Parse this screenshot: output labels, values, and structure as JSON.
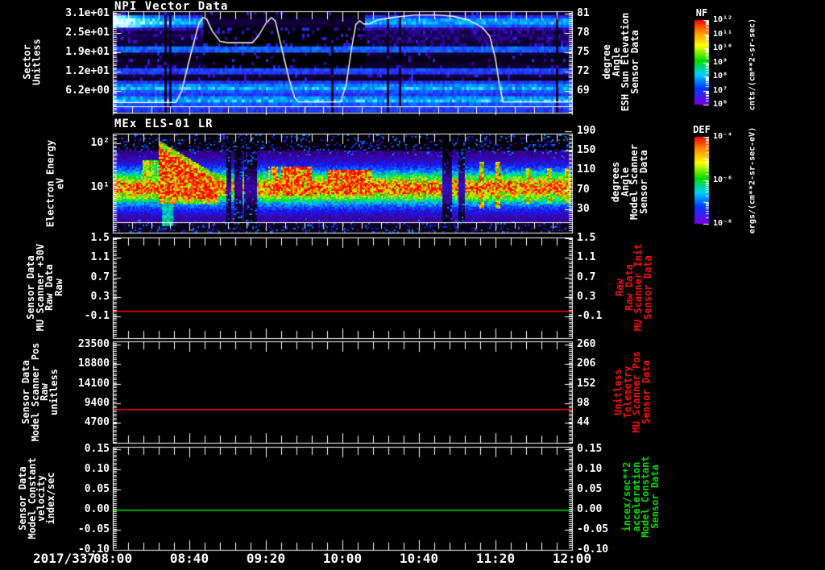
{
  "app": {
    "type": "science-data-plot-stack",
    "background": "#000000"
  },
  "time_axis": {
    "date": "2017/337",
    "tick_labels": [
      "08:00",
      "08:40",
      "09:20",
      "10:00",
      "10:40",
      "11:20",
      "12:00"
    ],
    "start": "08:00",
    "end": "12:00"
  },
  "colors": {
    "background": "#000000",
    "frame": "#ffffff",
    "text_white": "#ffffff",
    "text_red": "#ee1111",
    "text_green": "#00dd00",
    "line_red": "#ff0000",
    "line_green": "#00dd00",
    "overlay_line": "#ffffff"
  },
  "panels": [
    {
      "title": "NPI Vector Data",
      "left_axis": {
        "label_lines": [
          "Sector",
          "Unitless"
        ],
        "tick_labels": [
          "3.1e+01",
          "2.5e+01",
          "1.9e+01",
          "1.2e+01",
          "6.2e+00"
        ]
      },
      "right_axis": {
        "label_lines": [
          "Sensor Data",
          "ESH Sun Elevation",
          "Angle",
          "degree"
        ],
        "tick_labels": [
          "81",
          "78",
          "75",
          "72",
          "69"
        ],
        "color": "#ffffff"
      }
    },
    {
      "title": "MEx ELS-01 LR",
      "left_axis": {
        "label_lines": [
          "Electron Energy",
          "eV"
        ],
        "tick_labels": [
          "10²",
          "10¹"
        ]
      },
      "right_axis": {
        "label_lines": [
          "Sensor Data",
          "Model Scanner",
          "Angle",
          "degrees"
        ],
        "tick_labels": [
          "190",
          "150",
          "110",
          "70",
          "30"
        ],
        "color": "#ffffff"
      }
    },
    {
      "title": "",
      "left_axis": {
        "label_lines": [
          "Sensor Data",
          "MU Scanner +30V",
          "Raw Data",
          "Raw"
        ],
        "tick_labels": [
          "1.5",
          "1.1",
          "0.7",
          "0.3",
          "-0.1"
        ]
      },
      "right_axis": {
        "label_lines": [
          "Sensor Data",
          "MU Scanner Init",
          "Raw Data",
          "Raw"
        ],
        "tick_labels": [
          "1.5",
          "1.1",
          "0.7",
          "0.3",
          "-0.1"
        ],
        "color": "#ee1111"
      }
    },
    {
      "title": "",
      "left_axis": {
        "label_lines": [
          "Sensor Data",
          "Model Scanner Pos",
          "Raw",
          "unitless"
        ],
        "tick_labels": [
          "23500",
          "18800",
          "14100",
          "9400",
          "4700"
        ]
      },
      "right_axis": {
        "label_lines": [
          "Sensor Data",
          "MU Scanner Pos",
          "Telemetry",
          "Unitless"
        ],
        "tick_labels": [
          "260",
          "206",
          "152",
          "98",
          "44"
        ],
        "color": "#ee1111"
      }
    },
    {
      "title": "",
      "left_axis": {
        "label_lines": [
          "Sensor Data",
          "Model Constant",
          "velocity",
          "index/sec"
        ],
        "tick_labels": [
          "0.15",
          "0.10",
          "0.05",
          "0.00",
          "-0.05",
          "-0.10"
        ]
      },
      "right_axis": {
        "label_lines": [
          "Sensor Data",
          "Model Constant",
          "acceleration",
          "incex/sec**2"
        ],
        "tick_labels": [
          "0.15",
          "0.10",
          "0.05",
          "0.00",
          "-0.05",
          "-0.10"
        ],
        "color": "#00dd00"
      }
    }
  ],
  "colorbars": [
    {
      "title": "NF",
      "tick_labels": [
        "10¹²",
        "10¹¹",
        "10¹⁰",
        "10⁹",
        "10⁸",
        "10⁷",
        "10⁶"
      ],
      "unit": "cnts/(cm**2-sr-sec)"
    },
    {
      "title": "DEF",
      "tick_labels": [
        "10⁻⁴",
        "10⁻⁶",
        "10⁻⁸"
      ],
      "unit": "ergs/(cm**2-sr-sec-eV)"
    }
  ],
  "chart_data": [
    {
      "type": "heatmap",
      "title": "NPI Vector Data",
      "ylabel": "Sector (Unitless)",
      "y_tick_values": [
        31,
        25,
        19,
        12,
        6.2
      ],
      "x_range": [
        "08:00",
        "12:00"
      ],
      "z_label": "NF cnts/(cm**2-sr-sec)",
      "z_range_log10": [
        6,
        12
      ],
      "pattern": "horizontal sector bands of blue/cyan counts separated by black gaps; bright cyan patch 08:00-08:25 in upper sectors; dark region ~08:45-10:10 in upper sectors; scattered purple speckle pixels throughout",
      "overlay_line": {
        "name": "ESH Sun Elevation Angle",
        "unit": "degree",
        "axis_range": [
          69,
          81
        ],
        "x_minutes_after_0800": [
          0,
          33,
          36,
          41,
          45,
          47,
          49,
          52,
          56,
          60,
          73,
          76,
          80,
          83,
          85,
          88,
          92,
          95,
          97,
          119,
          122,
          125,
          127,
          129,
          131,
          134,
          138,
          146,
          158,
          170,
          178,
          186,
          193,
          197,
          200,
          202,
          204,
          240
        ],
        "values": [
          67.2,
          67.2,
          69,
          75,
          79.5,
          80.4,
          80.2,
          78.3,
          76.7,
          76.5,
          76.5,
          77.5,
          79.5,
          80.4,
          79.8,
          76,
          71,
          68,
          67.3,
          67.3,
          70,
          76,
          79.3,
          79.9,
          79.4,
          79.4,
          80,
          80.4,
          80.8,
          80.8,
          80.6,
          80,
          78.9,
          77.5,
          74,
          70,
          67.3,
          67.3
        ]
      }
    },
    {
      "type": "heatmap",
      "title": "MEx ELS-01 LR",
      "ylabel": "Electron Energy (eV)",
      "y_scale": "log",
      "y_tick_values": [
        100,
        10
      ],
      "x_range": [
        "08:00",
        "12:00"
      ],
      "z_label": "DEF ergs/(cm**2-sr-sec-eV)",
      "z_range_log10": [
        -8,
        -4
      ],
      "right_axis": {
        "label": "Model Scanner Angle (degrees)",
        "tick_values": [
          190,
          150,
          110,
          70,
          30
        ]
      },
      "pattern": "continuous green 5-30 eV band across all times; intense red burst ~08:25-08:55 reaching ~150 eV; red patches ~09:20-09:45 and ~09:55-10:15; vertical data gap ~09:00-09:15; narrow warm vertical streaks after 11:10"
    },
    {
      "type": "line",
      "name": "Sensor Data MU Scanner +30V Raw Data (Raw)",
      "constant_value": 0.02,
      "ylim": [
        -0.1,
        1.5
      ],
      "color": "#ff0000"
    },
    {
      "type": "line",
      "name": "Sensor Data Model Scanner Pos Raw (unitless)",
      "constant_value": 8050,
      "ylim": [
        4700,
        23500
      ],
      "right_axis": {
        "name": "MU Scanner Pos Telemetry (Unitless)",
        "value": 83,
        "ylim": [
          44,
          260
        ]
      },
      "color": "#ff0000"
    },
    {
      "type": "line",
      "name": "Sensor Data Model Constant velocity (index/sec)",
      "constant_value": 0.0,
      "ylim": [
        -0.1,
        0.15
      ],
      "right_axis": {
        "name": "Model Constant acceleration (incex/sec**2)"
      },
      "color": "#00dd00"
    }
  ]
}
